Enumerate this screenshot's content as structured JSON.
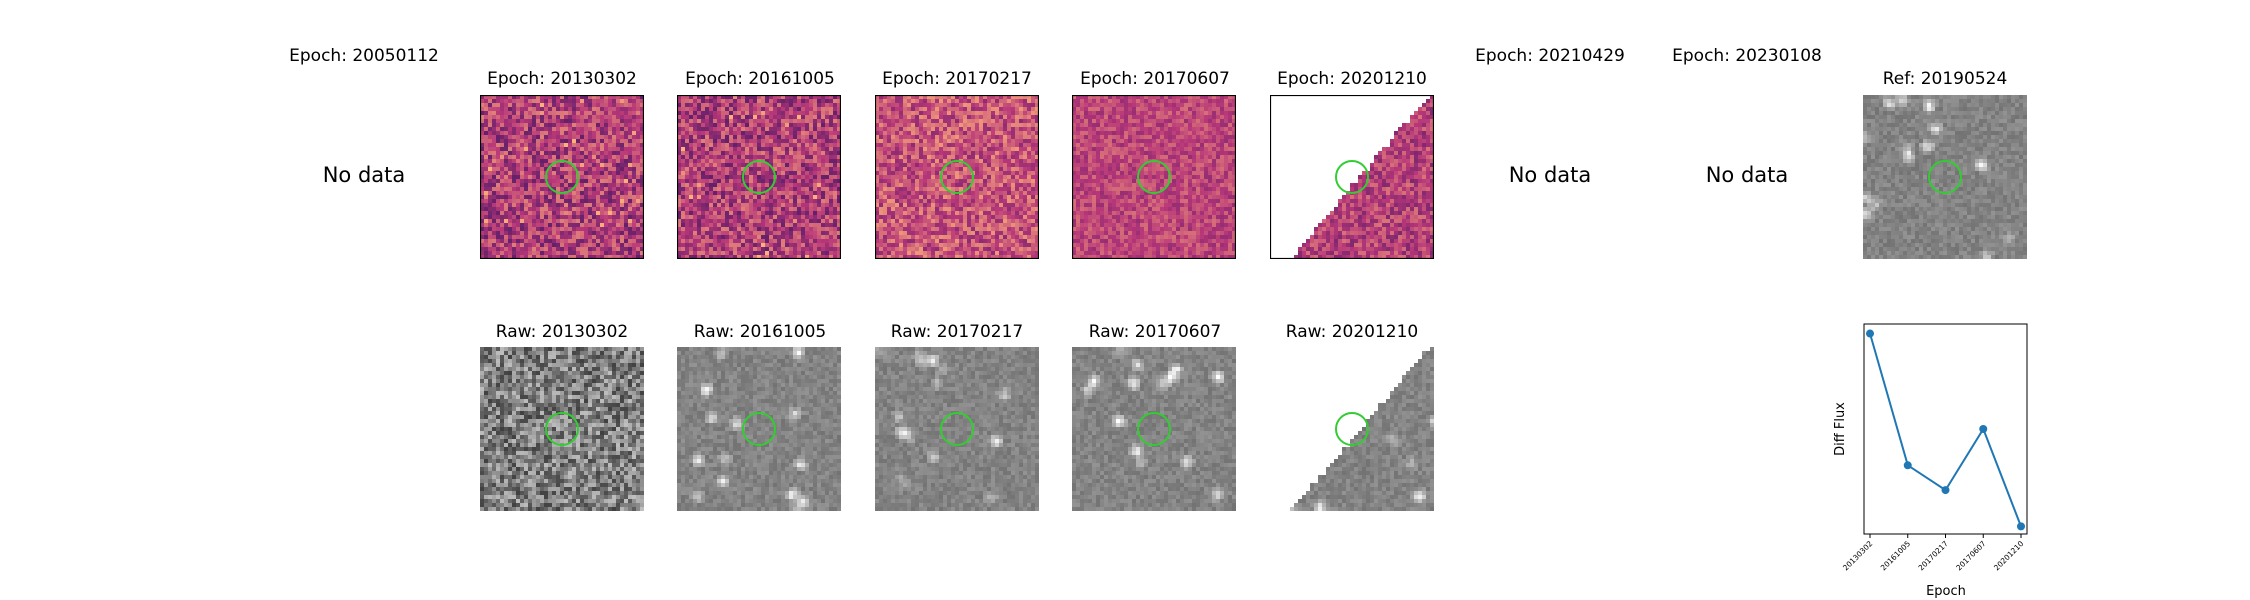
{
  "top_row": {
    "panels": [
      {
        "title": "Epoch: 20050112",
        "no_data_label": "No data"
      },
      {
        "title": "Epoch: 20130302"
      },
      {
        "title": "Epoch: 20161005"
      },
      {
        "title": "Epoch: 20170217"
      },
      {
        "title": "Epoch: 20170607"
      },
      {
        "title": "Epoch: 20201210"
      },
      {
        "title": "Epoch: 20210429",
        "no_data_label": "No data"
      },
      {
        "title": "Epoch: 20230108",
        "no_data_label": "No data"
      },
      {
        "title": "Ref: 20190524"
      }
    ]
  },
  "bottom_row": {
    "panels": [
      {
        "title": "Raw: 20130302"
      },
      {
        "title": "Raw: 20161005"
      },
      {
        "title": "Raw: 20170217"
      },
      {
        "title": "Raw: 20170607"
      },
      {
        "title": "Raw: 20201210"
      }
    ]
  },
  "colors": {
    "marker_circle": "#33cc33",
    "series_line": "#1f77b4",
    "magma_low": "#2c115f",
    "magma_mid": "#b73779",
    "magma_high": "#fcb07a"
  },
  "chart_data": {
    "type": "line",
    "x": [
      "20130302",
      "20161005",
      "20170217",
      "20170607",
      "20201210"
    ],
    "series": [
      {
        "values": [
          1.0,
          0.31,
          0.18,
          0.5,
          -0.01
        ]
      }
    ],
    "xlabel": "Epoch",
    "ylabel": "Diff Flux",
    "ylim": [
      -0.05,
      1.05
    ],
    "grid": false,
    "marker": "circle"
  }
}
